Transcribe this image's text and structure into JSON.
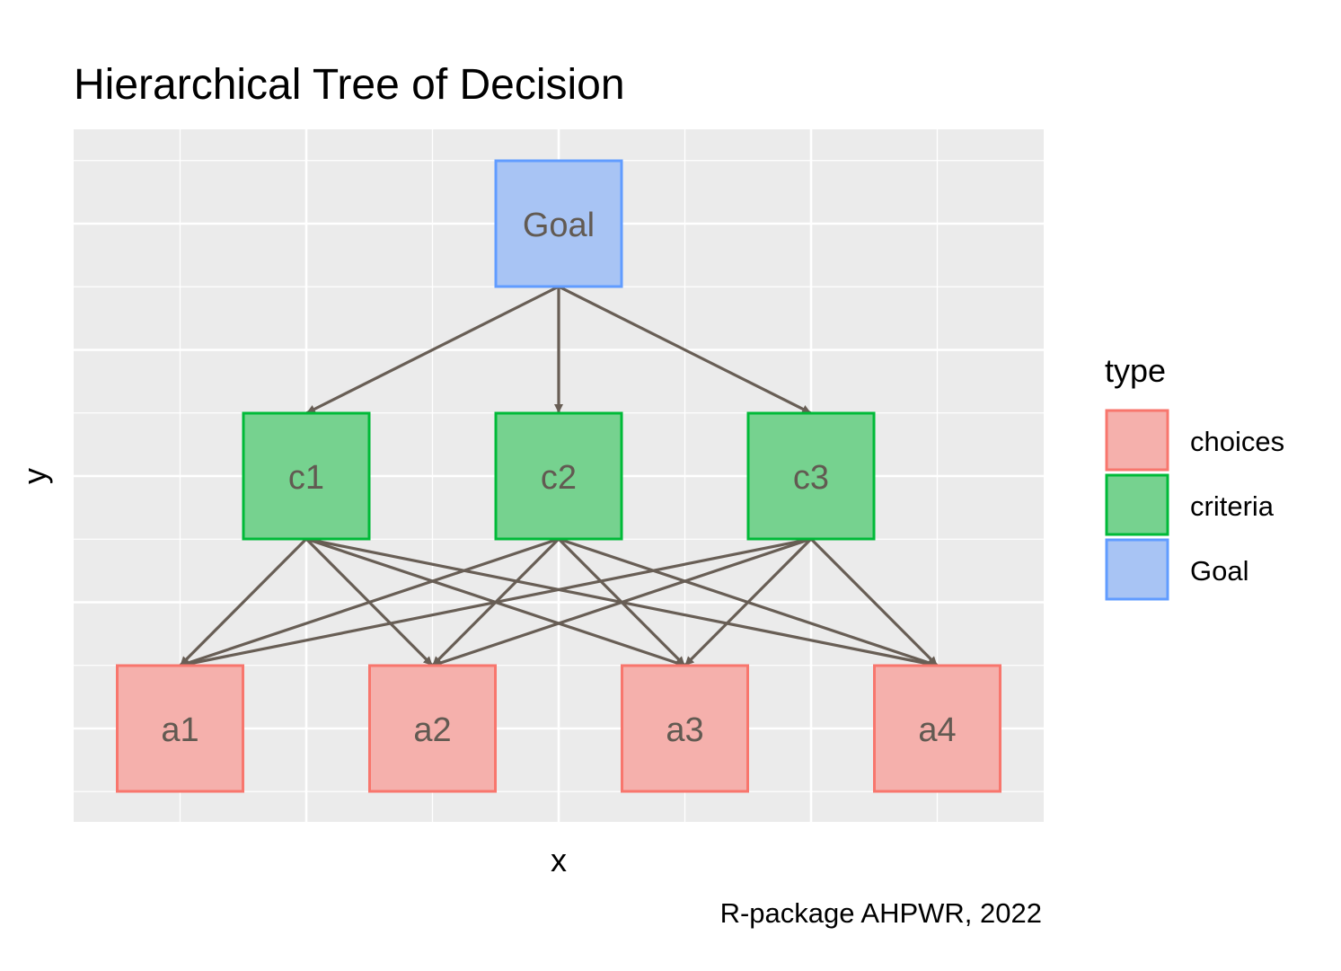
{
  "chart_data": {
    "type": "hierarchy-tree",
    "title": "Hierarchical Tree of Decision",
    "xlabel": "x",
    "ylabel": "y",
    "caption": "R-package AHPWR, 2022",
    "legend": {
      "title": "type",
      "placement": "right",
      "entries": [
        {
          "label": "choices",
          "fill": "#f5b0ac",
          "stroke": "#f8766d"
        },
        {
          "label": "criteria",
          "fill": "#76d28f",
          "stroke": "#00ba38"
        },
        {
          "label": "Goal",
          "fill": "#a8c4f4",
          "stroke": "#619cff"
        }
      ]
    },
    "nodes": [
      {
        "id": "Goal",
        "label": "Goal",
        "type": "Goal",
        "x": 0,
        "y": 3
      },
      {
        "id": "c1",
        "label": "c1",
        "type": "criteria",
        "x": -1,
        "y": 2
      },
      {
        "id": "c2",
        "label": "c2",
        "type": "criteria",
        "x": 0,
        "y": 2
      },
      {
        "id": "c3",
        "label": "c3",
        "type": "criteria",
        "x": 1,
        "y": 2
      },
      {
        "id": "a1",
        "label": "a1",
        "type": "choices",
        "x": -1.5,
        "y": 1
      },
      {
        "id": "a2",
        "label": "a2",
        "type": "choices",
        "x": -0.5,
        "y": 1
      },
      {
        "id": "a3",
        "label": "a3",
        "type": "choices",
        "x": 0.5,
        "y": 1
      },
      {
        "id": "a4",
        "label": "a4",
        "type": "choices",
        "x": 1.5,
        "y": 1
      }
    ],
    "edges": [
      [
        "Goal",
        "c1"
      ],
      [
        "Goal",
        "c2"
      ],
      [
        "Goal",
        "c3"
      ],
      [
        "c1",
        "a1"
      ],
      [
        "c1",
        "a2"
      ],
      [
        "c1",
        "a3"
      ],
      [
        "c1",
        "a4"
      ],
      [
        "c2",
        "a1"
      ],
      [
        "c2",
        "a2"
      ],
      [
        "c2",
        "a3"
      ],
      [
        "c2",
        "a4"
      ],
      [
        "c3",
        "a1"
      ],
      [
        "c3",
        "a2"
      ],
      [
        "c3",
        "a3"
      ],
      [
        "c3",
        "a4"
      ]
    ],
    "colors": {
      "panel": "#ebebeb",
      "grid": "#ffffff",
      "edge": "#685e55"
    }
  }
}
